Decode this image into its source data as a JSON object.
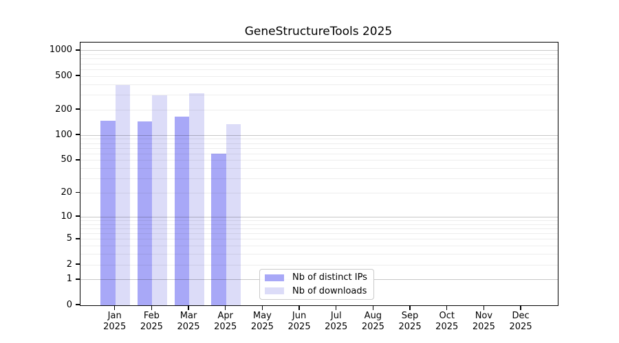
{
  "chart_data": {
    "type": "bar",
    "title": "GeneStructureTools 2025",
    "categories": [
      "Jan",
      "Feb",
      "Mar",
      "Apr",
      "May",
      "Jun",
      "Jul",
      "Aug",
      "Sep",
      "Oct",
      "Nov",
      "Dec"
    ],
    "x_year_suffix": "2025",
    "series": [
      {
        "name": "Nb of distinct IPs",
        "color": "#a8a8f7",
        "values": [
          148,
          146,
          168,
          60,
          null,
          null,
          null,
          null,
          null,
          null,
          null,
          null
        ]
      },
      {
        "name": "Nb of downloads",
        "color": "#dcdcf8",
        "values": [
          397,
          295,
          315,
          135,
          null,
          null,
          null,
          null,
          null,
          null,
          null,
          null
        ]
      }
    ],
    "yscale": "log1p",
    "yticks": [
      0,
      1,
      2,
      5,
      10,
      20,
      50,
      100,
      200,
      500,
      1000
    ],
    "ytick_labels": [
      "0",
      "1",
      "2",
      "5",
      "10",
      "20",
      "50",
      "100",
      "200",
      "500",
      "1000"
    ],
    "ylim": [
      0,
      1250
    ],
    "grid": "both",
    "legend_position": "lower center"
  }
}
